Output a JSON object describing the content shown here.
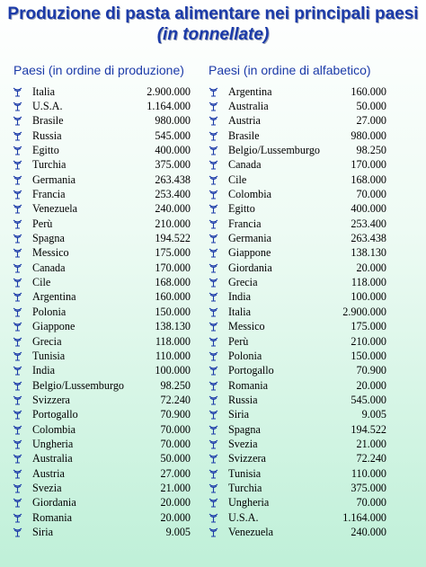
{
  "title_line1": "Produzione di pasta alimentare nei principali paesi",
  "title_line2": "(in tonnellate)",
  "left_header": "Paesi (in ordine di produzione)",
  "right_header": "Paesi (in ordine di alfabetico)",
  "bullet_icon": "fleuron-bullet-icon",
  "accent_color": "#1b3aa8",
  "left": [
    {
      "name": "Italia",
      "value": "2.900.000"
    },
    {
      "name": "U.S.A.",
      "value": "1.164.000"
    },
    {
      "name": "Brasile",
      "value": "980.000"
    },
    {
      "name": "Russia",
      "value": "545.000"
    },
    {
      "name": "Egitto",
      "value": "400.000"
    },
    {
      "name": "Turchia",
      "value": "375.000"
    },
    {
      "name": "Germania",
      "value": "263.438"
    },
    {
      "name": "Francia",
      "value": "253.400"
    },
    {
      "name": "Venezuela",
      "value": "240.000"
    },
    {
      "name": "Perù",
      "value": "210.000"
    },
    {
      "name": "Spagna",
      "value": "194.522"
    },
    {
      "name": "Messico",
      "value": "175.000"
    },
    {
      "name": "Canada",
      "value": "170.000"
    },
    {
      "name": "Cile",
      "value": "168.000"
    },
    {
      "name": "Argentina",
      "value": "160.000"
    },
    {
      "name": "Polonia",
      "value": "150.000"
    },
    {
      "name": "Giappone",
      "value": "138.130"
    },
    {
      "name": "Grecia",
      "value": "118.000"
    },
    {
      "name": "Tunisia",
      "value": "110.000"
    },
    {
      "name": "India",
      "value": "100.000"
    },
    {
      "name": "Belgio/Lussemburgo",
      "value": "98.250"
    },
    {
      "name": "Svizzera",
      "value": "72.240"
    },
    {
      "name": "Portogallo",
      "value": "70.900"
    },
    {
      "name": "Colombia",
      "value": "70.000"
    },
    {
      "name": "Ungheria",
      "value": "70.000"
    },
    {
      "name": "Australia",
      "value": "50.000"
    },
    {
      "name": "Austria",
      "value": "27.000"
    },
    {
      "name": "Svezia",
      "value": "21.000"
    },
    {
      "name": "Giordania",
      "value": "20.000"
    },
    {
      "name": "Romania",
      "value": "20.000"
    },
    {
      "name": "Siria",
      "value": "9.005"
    }
  ],
  "right": [
    {
      "name": "Argentina",
      "value": "160.000"
    },
    {
      "name": "Australia",
      "value": "50.000"
    },
    {
      "name": "Austria",
      "value": "27.000"
    },
    {
      "name": "Brasile",
      "value": "980.000"
    },
    {
      "name": "Belgio/Lussemburgo",
      "value": "98.250"
    },
    {
      "name": "Canada",
      "value": "170.000"
    },
    {
      "name": "Cile",
      "value": "168.000"
    },
    {
      "name": "Colombia",
      "value": "70.000"
    },
    {
      "name": "Egitto",
      "value": "400.000"
    },
    {
      "name": "Francia",
      "value": "253.400"
    },
    {
      "name": "Germania",
      "value": "263.438"
    },
    {
      "name": "Giappone",
      "value": "138.130"
    },
    {
      "name": "Giordania",
      "value": "20.000"
    },
    {
      "name": "Grecia",
      "value": "118.000"
    },
    {
      "name": "India",
      "value": "100.000"
    },
    {
      "name": "Italia",
      "value": "2.900.000"
    },
    {
      "name": "Messico",
      "value": "175.000"
    },
    {
      "name": "Perù",
      "value": "210.000"
    },
    {
      "name": "Polonia",
      "value": "150.000"
    },
    {
      "name": "Portogallo",
      "value": "70.900"
    },
    {
      "name": "Romania",
      "value": "20.000"
    },
    {
      "name": "Russia",
      "value": "545.000"
    },
    {
      "name": "Siria",
      "value": "9.005"
    },
    {
      "name": "Spagna",
      "value": "194.522"
    },
    {
      "name": "Svezia",
      "value": "21.000"
    },
    {
      "name": "Svizzera",
      "value": "72.240"
    },
    {
      "name": "Tunisia",
      "value": "110.000"
    },
    {
      "name": "Turchia",
      "value": "375.000"
    },
    {
      "name": "Ungheria",
      "value": "70.000"
    },
    {
      "name": "U.S.A.",
      "value": "1.164.000"
    },
    {
      "name": "Venezuela",
      "value": "240.000"
    }
  ]
}
